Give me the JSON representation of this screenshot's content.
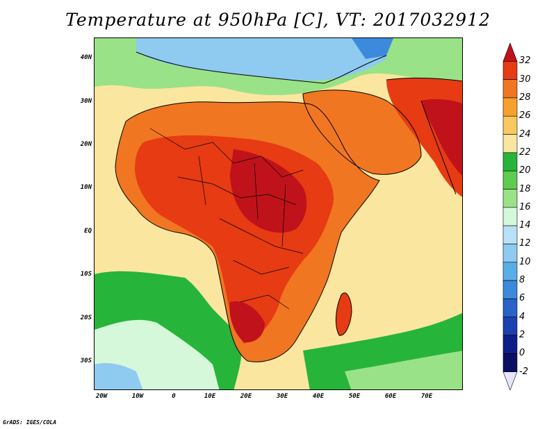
{
  "title": "Temperature at 950hPa [C], VT: 2017032912",
  "credit": "GrADS: IGES/COLA",
  "lat_labels": [
    "40N",
    "30N",
    "20N",
    "10N",
    "EQ",
    "10S",
    "20S",
    "30S"
  ],
  "lon_labels": [
    "20W",
    "10W",
    "0",
    "10E",
    "20E",
    "30E",
    "40E",
    "50E",
    "60E",
    "70E"
  ],
  "colorbar": {
    "labels": [
      "32",
      "30",
      "28",
      "26",
      "24",
      "22",
      "20",
      "18",
      "16",
      "14",
      "12",
      "10",
      "8",
      "6",
      "4",
      "2",
      "0",
      "-2"
    ],
    "colors": [
      "#c0121b",
      "#e63b13",
      "#f07622",
      "#f6a12e",
      "#f9c95f",
      "#fbe6a0",
      "#27b43a",
      "#5dcc51",
      "#99e287",
      "#d5f8da",
      "#b8e1f8",
      "#8fcaf1",
      "#5aaee7",
      "#3c8adb",
      "#2a63c8",
      "#1b40b0",
      "#0e1e89",
      "#0b0f63",
      "#e8e4fb"
    ]
  },
  "domain": {
    "lon_min": -23,
    "lon_max": 79,
    "lat_min": -37,
    "lat_max": 45
  }
}
